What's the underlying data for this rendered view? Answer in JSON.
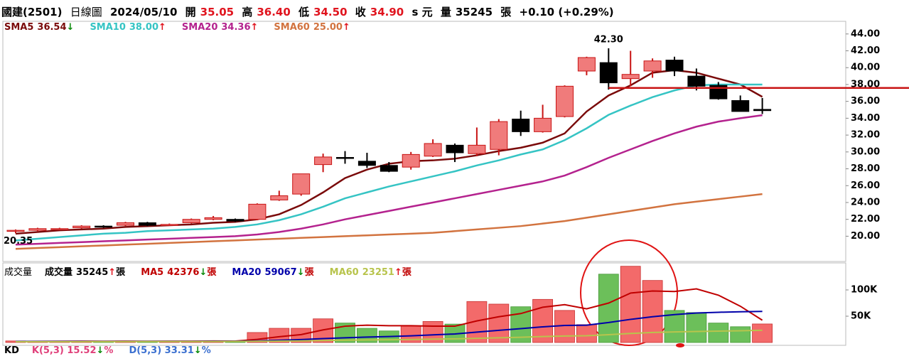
{
  "header": {
    "name": "國建(2501)",
    "period": "日線圖",
    "date": "2024/05/10",
    "open_label": "開",
    "open": "35.05",
    "high_label": "高",
    "high": "36.40",
    "low_label": "低",
    "low": "34.50",
    "close_label": "收",
    "close": "34.90",
    "unit": "s 元",
    "volume_label": "量",
    "volume": "35245",
    "volume_unit": "張",
    "change": "+0.10 (+0.29%)"
  },
  "chart_data": [
    {
      "type": "candlestick",
      "open": [
        20.6,
        20.7,
        20.9,
        21.0,
        21.2,
        21.3,
        21.6,
        21.4,
        21.6,
        22.0,
        22.0,
        22.0,
        24.3,
        25.0,
        28.5,
        29.35,
        28.9,
        28.4,
        28.2,
        29.5,
        30.8,
        29.8,
        30.3,
        33.9,
        32.4,
        34.2,
        39.6,
        40.6,
        38.7,
        39.6,
        40.9,
        39.0,
        37.9,
        36.1,
        35.05
      ],
      "high": [
        20.8,
        21.0,
        21.0,
        21.3,
        21.3,
        21.7,
        21.7,
        21.5,
        22.1,
        22.4,
        22.1,
        23.9,
        25.4,
        27.4,
        29.8,
        30.1,
        29.9,
        28.8,
        30.0,
        31.5,
        31.0,
        32.9,
        33.9,
        34.9,
        35.6,
        37.9,
        41.3,
        42.3,
        42.0,
        41.1,
        41.3,
        39.9,
        38.3,
        36.7,
        36.4
      ],
      "low": [
        20.35,
        20.6,
        20.8,
        20.9,
        21.0,
        21.2,
        21.2,
        21.3,
        21.5,
        21.9,
        21.7,
        21.9,
        24.2,
        24.8,
        27.6,
        28.6,
        28.1,
        27.6,
        27.9,
        29.4,
        28.8,
        29.5,
        29.6,
        31.9,
        32.3,
        34.1,
        39.1,
        37.4,
        37.8,
        38.8,
        39.0,
        37.3,
        36.2,
        35.0,
        34.5
      ],
      "close": [
        20.7,
        20.9,
        20.9,
        21.2,
        21.1,
        21.6,
        21.3,
        21.4,
        22.0,
        22.2,
        21.8,
        23.8,
        24.8,
        27.4,
        29.4,
        29.3,
        28.4,
        27.7,
        29.7,
        31.0,
        29.9,
        30.8,
        33.6,
        32.4,
        34.0,
        37.8,
        41.2,
        38.2,
        39.2,
        40.8,
        39.6,
        37.8,
        36.3,
        34.8,
        34.9
      ],
      "up_color": "#f07b7b",
      "down_color": "#000000",
      "series": [
        {
          "name": "SMA5",
          "value_label": "36.54",
          "arrow": "↓",
          "color": "#7a0a0a",
          "values": [
            20.3,
            20.5,
            20.7,
            20.8,
            20.9,
            21.1,
            21.2,
            21.3,
            21.4,
            21.6,
            21.7,
            22.0,
            22.6,
            23.7,
            25.2,
            26.9,
            27.9,
            28.6,
            28.9,
            29.0,
            29.2,
            29.6,
            30.1,
            30.5,
            31.1,
            32.2,
            34.8,
            36.7,
            37.9,
            39.4,
            39.7,
            39.4,
            38.7,
            38.0,
            36.54
          ]
        },
        {
          "name": "SMA10",
          "value_label": "38.00",
          "arrow": "↑",
          "color": "#35c4c4",
          "values": [
            19.5,
            19.7,
            19.9,
            20.1,
            20.3,
            20.4,
            20.6,
            20.7,
            20.8,
            20.9,
            21.1,
            21.4,
            21.9,
            22.6,
            23.5,
            24.5,
            25.2,
            25.9,
            26.5,
            27.1,
            27.7,
            28.4,
            29.0,
            29.7,
            30.3,
            31.4,
            32.8,
            34.4,
            35.5,
            36.5,
            37.3,
            37.9,
            38.0,
            38.0,
            38.0
          ]
        },
        {
          "name": "SMA20",
          "value_label": "34.36",
          "arrow": "↑",
          "color": "#b4228e",
          "values": [
            19.0,
            19.1,
            19.2,
            19.3,
            19.4,
            19.5,
            19.6,
            19.7,
            19.8,
            19.9,
            20.0,
            20.2,
            20.5,
            20.9,
            21.4,
            22.0,
            22.5,
            23.0,
            23.5,
            24.0,
            24.5,
            25.0,
            25.5,
            26.0,
            26.5,
            27.2,
            28.2,
            29.3,
            30.3,
            31.3,
            32.2,
            33.0,
            33.6,
            34.0,
            34.36
          ]
        },
        {
          "name": "SMA60",
          "value_label": "25.00",
          "arrow": "↑",
          "color": "#d2733f",
          "values": [
            18.5,
            18.6,
            18.7,
            18.8,
            18.9,
            19.0,
            19.1,
            19.2,
            19.3,
            19.4,
            19.5,
            19.6,
            19.7,
            19.8,
            19.9,
            20.0,
            20.1,
            20.2,
            20.3,
            20.4,
            20.6,
            20.8,
            21.0,
            21.2,
            21.5,
            21.8,
            22.2,
            22.6,
            23.0,
            23.4,
            23.8,
            24.1,
            24.4,
            24.7,
            25.0
          ]
        }
      ],
      "annotations": [
        "42.30",
        "20.35"
      ],
      "hline": {
        "value": 37.6,
        "color": "#c81414"
      },
      "ylim": [
        17,
        45.5
      ],
      "yticks": [
        {
          "value": 20,
          "label": "20.00"
        },
        {
          "value": 22,
          "label": "22.00"
        },
        {
          "value": 24,
          "label": "24.00"
        },
        {
          "value": 26,
          "label": "26.00"
        },
        {
          "value": 28,
          "label": "28.00"
        },
        {
          "value": 30,
          "label": "30.00"
        },
        {
          "value": 32,
          "label": "32.00"
        },
        {
          "value": 34,
          "label": "34.00"
        },
        {
          "value": 36,
          "label": "36.00"
        },
        {
          "value": 38,
          "label": "38.00"
        },
        {
          "value": 40,
          "label": "40.00"
        },
        {
          "value": 42,
          "label": "42.00"
        },
        {
          "value": 44,
          "label": "44.00"
        }
      ]
    },
    {
      "type": "bar",
      "title": "成交量",
      "label": "成交量",
      "value_label": "35245",
      "arrow": "↑",
      "unit": "張",
      "up_color": "#f36a6a",
      "down_color": "#6cbf5a",
      "values": [
        3000,
        2500,
        2000,
        2500,
        2000,
        3000,
        2500,
        2000,
        3000,
        3500,
        2500,
        19000,
        27000,
        27000,
        45000,
        37000,
        27000,
        22000,
        31000,
        40000,
        35000,
        78000,
        73000,
        68000,
        82000,
        61000,
        34000,
        130000,
        145000,
        118000,
        61000,
        57000,
        37000,
        30000,
        35245
      ],
      "series": [
        {
          "name": "MA5",
          "value_label": "42376",
          "arrow": "↓",
          "color": "#c00000",
          "values": [
            2000,
            2200,
            2400,
            2500,
            2400,
            2500,
            2400,
            2500,
            2600,
            2800,
            2700,
            6000,
            11000,
            15000,
            24000,
            31000,
            33000,
            32000,
            32000,
            31000,
            31000,
            41000,
            49000,
            55000,
            67000,
            72000,
            64000,
            75000,
            94000,
            98000,
            97000,
            102000,
            90000,
            69000,
            42376
          ]
        },
        {
          "name": "MA20",
          "value_label": "59067",
          "arrow": "↓",
          "color": "#0000aa",
          "values": [
            2000,
            2000,
            2000,
            2100,
            2100,
            2100,
            2200,
            2200,
            2200,
            2300,
            2300,
            3100,
            4300,
            5500,
            7500,
            9000,
            10300,
            11300,
            12700,
            14600,
            16200,
            19800,
            23200,
            26300,
            29800,
            32500,
            33000,
            38000,
            44000,
            49000,
            53000,
            56000,
            57500,
            58500,
            59067
          ]
        },
        {
          "name": "MA60",
          "value_label": "23251",
          "arrow": "↑",
          "color": "#b8c44c",
          "values": [
            1500,
            1500,
            1600,
            1600,
            1700,
            1700,
            1800,
            1800,
            1900,
            1900,
            2000,
            2300,
            2700,
            3100,
            3800,
            4400,
            4900,
            5300,
            5800,
            6400,
            7000,
            8000,
            9000,
            10000,
            11300,
            12300,
            12800,
            14800,
            17200,
            19100,
            20100,
            21000,
            21600,
            22300,
            23251
          ]
        }
      ],
      "ylim": [
        0,
        150000
      ],
      "yticks": [
        {
          "value": 50000,
          "label": "50K"
        },
        {
          "value": 100000,
          "label": "100K"
        }
      ]
    }
  ],
  "kd": {
    "title": "KD",
    "items": [
      {
        "label": "K(5,3) 15.52",
        "arrow": "↓",
        "unit": "%",
        "color": "#e0407a"
      },
      {
        "label": "D(5,3) 33.31",
        "arrow": "↓",
        "unit": "%",
        "color": "#3a6fd0"
      }
    ]
  }
}
